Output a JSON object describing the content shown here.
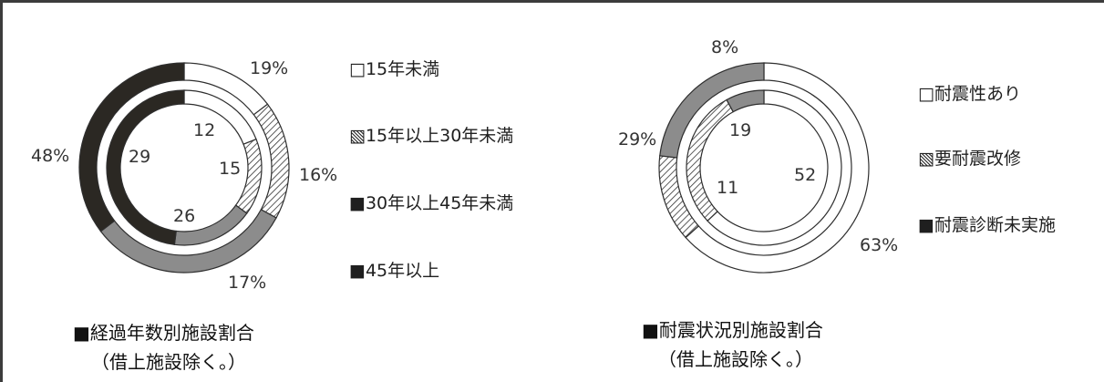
{
  "chart_data": [
    {
      "type": "donut",
      "title": "■経過年数別施設割合",
      "subtitle": "（借上施設除く。）",
      "categories": [
        "15年未満",
        "15年以上30年未満",
        "30年以上45年未満",
        "45年以上"
      ],
      "legend": [
        "□15年未満",
        "▧15年以上30年未満",
        "■30年以上45年未満",
        "■45年以上"
      ],
      "series": [
        {
          "ring": "outer",
          "values": [
            19,
            16,
            17,
            48
          ],
          "labels": [
            "19%",
            "16%",
            "17%",
            "48%"
          ]
        },
        {
          "ring": "inner",
          "values": [
            12,
            15,
            26,
            29
          ],
          "labels": [
            "12",
            "15",
            "26",
            "29"
          ]
        }
      ],
      "colors": [
        "#ffffff",
        "hatch",
        "#8c8c8c",
        "#2b2823"
      ],
      "legend_position": "right"
    },
    {
      "type": "donut",
      "title": "■耐震状況別施設割合",
      "subtitle": "（借上施設除く。）",
      "categories": [
        "耐震性あり",
        "要耐震改修",
        "耐震診断未実施"
      ],
      "legend": [
        "□耐震性あり",
        "▧要耐震改修",
        "■耐震診断未実施"
      ],
      "series": [
        {
          "ring": "outer",
          "values": [
            63,
            29,
            8
          ],
          "labels": [
            "63%",
            "29%",
            "8%"
          ]
        },
        {
          "ring": "inner",
          "values": [
            52,
            11,
            19
          ],
          "labels": [
            "52",
            "11",
            "19"
          ]
        }
      ],
      "colors": [
        "#ffffff",
        "hatch",
        "#8c8c8c"
      ],
      "legend_position": "right"
    }
  ]
}
